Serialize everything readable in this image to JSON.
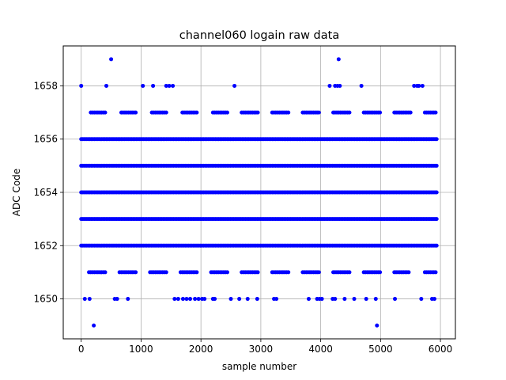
{
  "chart_data": {
    "type": "scatter",
    "title": "channel060 logain raw data",
    "xlabel": "sample number",
    "ylabel": "ADC Code",
    "xlim": [
      -300,
      6250
    ],
    "ylim": [
      1648.5,
      1659.5
    ],
    "xticks": [
      0,
      1000,
      2000,
      3000,
      4000,
      5000,
      6000
    ],
    "yticks": [
      1650,
      1652,
      1654,
      1656,
      1658
    ],
    "grid": true,
    "marker_color": "#0000ff",
    "x_range": [
      0,
      5940
    ],
    "levels": [
      {
        "y": 1649,
        "x": [
          210,
          4940
        ]
      },
      {
        "y": 1650,
        "x": [
          60,
          140,
          560,
          600,
          780,
          1560,
          1620,
          1700,
          1760,
          1820,
          1900,
          1960,
          2020,
          2060,
          2200,
          2230,
          2500,
          2640,
          2780,
          2940,
          3220,
          3260,
          3800,
          3940,
          3980,
          4020,
          4200,
          4240,
          4400,
          4560,
          4760,
          4920,
          5240,
          5680,
          5860,
          5900
        ]
      },
      {
        "y": 1658,
        "x": [
          0,
          420,
          1030,
          1200,
          1420,
          1470,
          1530,
          2560,
          4150,
          4240,
          4280,
          4320,
          4680,
          5560,
          5610,
          5640,
          5700
        ]
      },
      {
        "y": 1659,
        "x": [
          500,
          4300
        ]
      }
    ],
    "dense_levels": [
      1652,
      1653,
      1654,
      1655,
      1656
    ],
    "medium_levels": [
      1651,
      1657
    ]
  }
}
